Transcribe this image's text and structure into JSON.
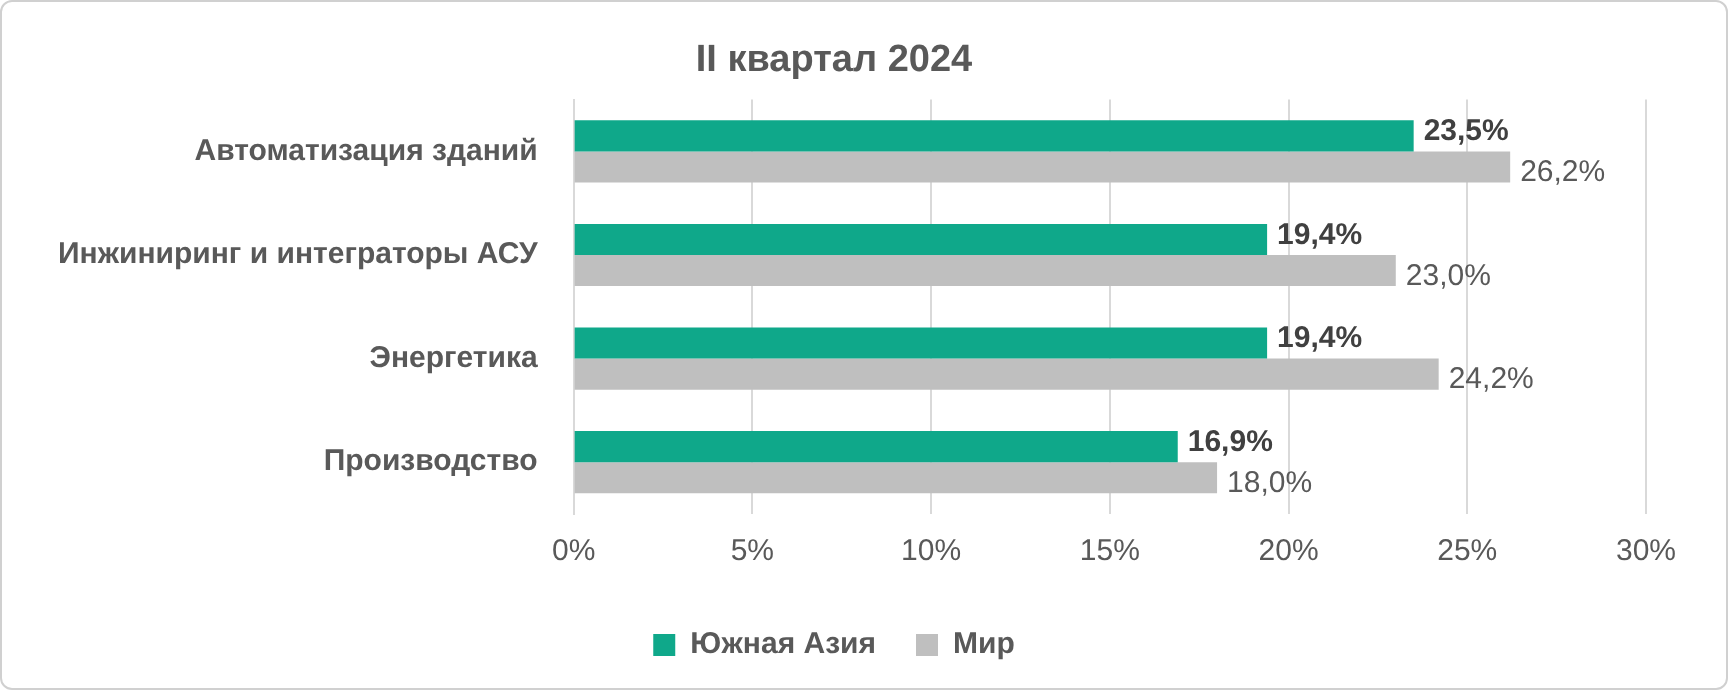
{
  "chart_data": {
    "type": "bar",
    "orientation": "horizontal",
    "title": "II квартал 2024",
    "categories": [
      "Автоматизация зданий",
      "Инжиниринг и интеграторы АСУ",
      "Энергетика",
      "Производство"
    ],
    "series": [
      {
        "name": "Южная Азия",
        "color": "#0fa88a",
        "values": [
          23.5,
          19.4,
          19.4,
          16.9
        ],
        "value_labels": [
          "23,5%",
          "19,4%",
          "19,4%",
          "16,9%"
        ]
      },
      {
        "name": "Мир",
        "color": "#bfbfbf",
        "values": [
          26.2,
          23.0,
          24.2,
          18.0
        ],
        "value_labels": [
          "26,2%",
          "23,0%",
          "24,2%",
          "18,0%"
        ]
      }
    ],
    "xlim": [
      0,
      30
    ],
    "xticks": [
      {
        "value": 0,
        "label": "0%"
      },
      {
        "value": 5,
        "label": "5%"
      },
      {
        "value": 10,
        "label": "10%"
      },
      {
        "value": 15,
        "label": "15%"
      },
      {
        "value": 20,
        "label": "20%"
      },
      {
        "value": 25,
        "label": "25%"
      },
      {
        "value": 30,
        "label": "30%"
      }
    ],
    "grid": "x",
    "legend": "bottom"
  }
}
